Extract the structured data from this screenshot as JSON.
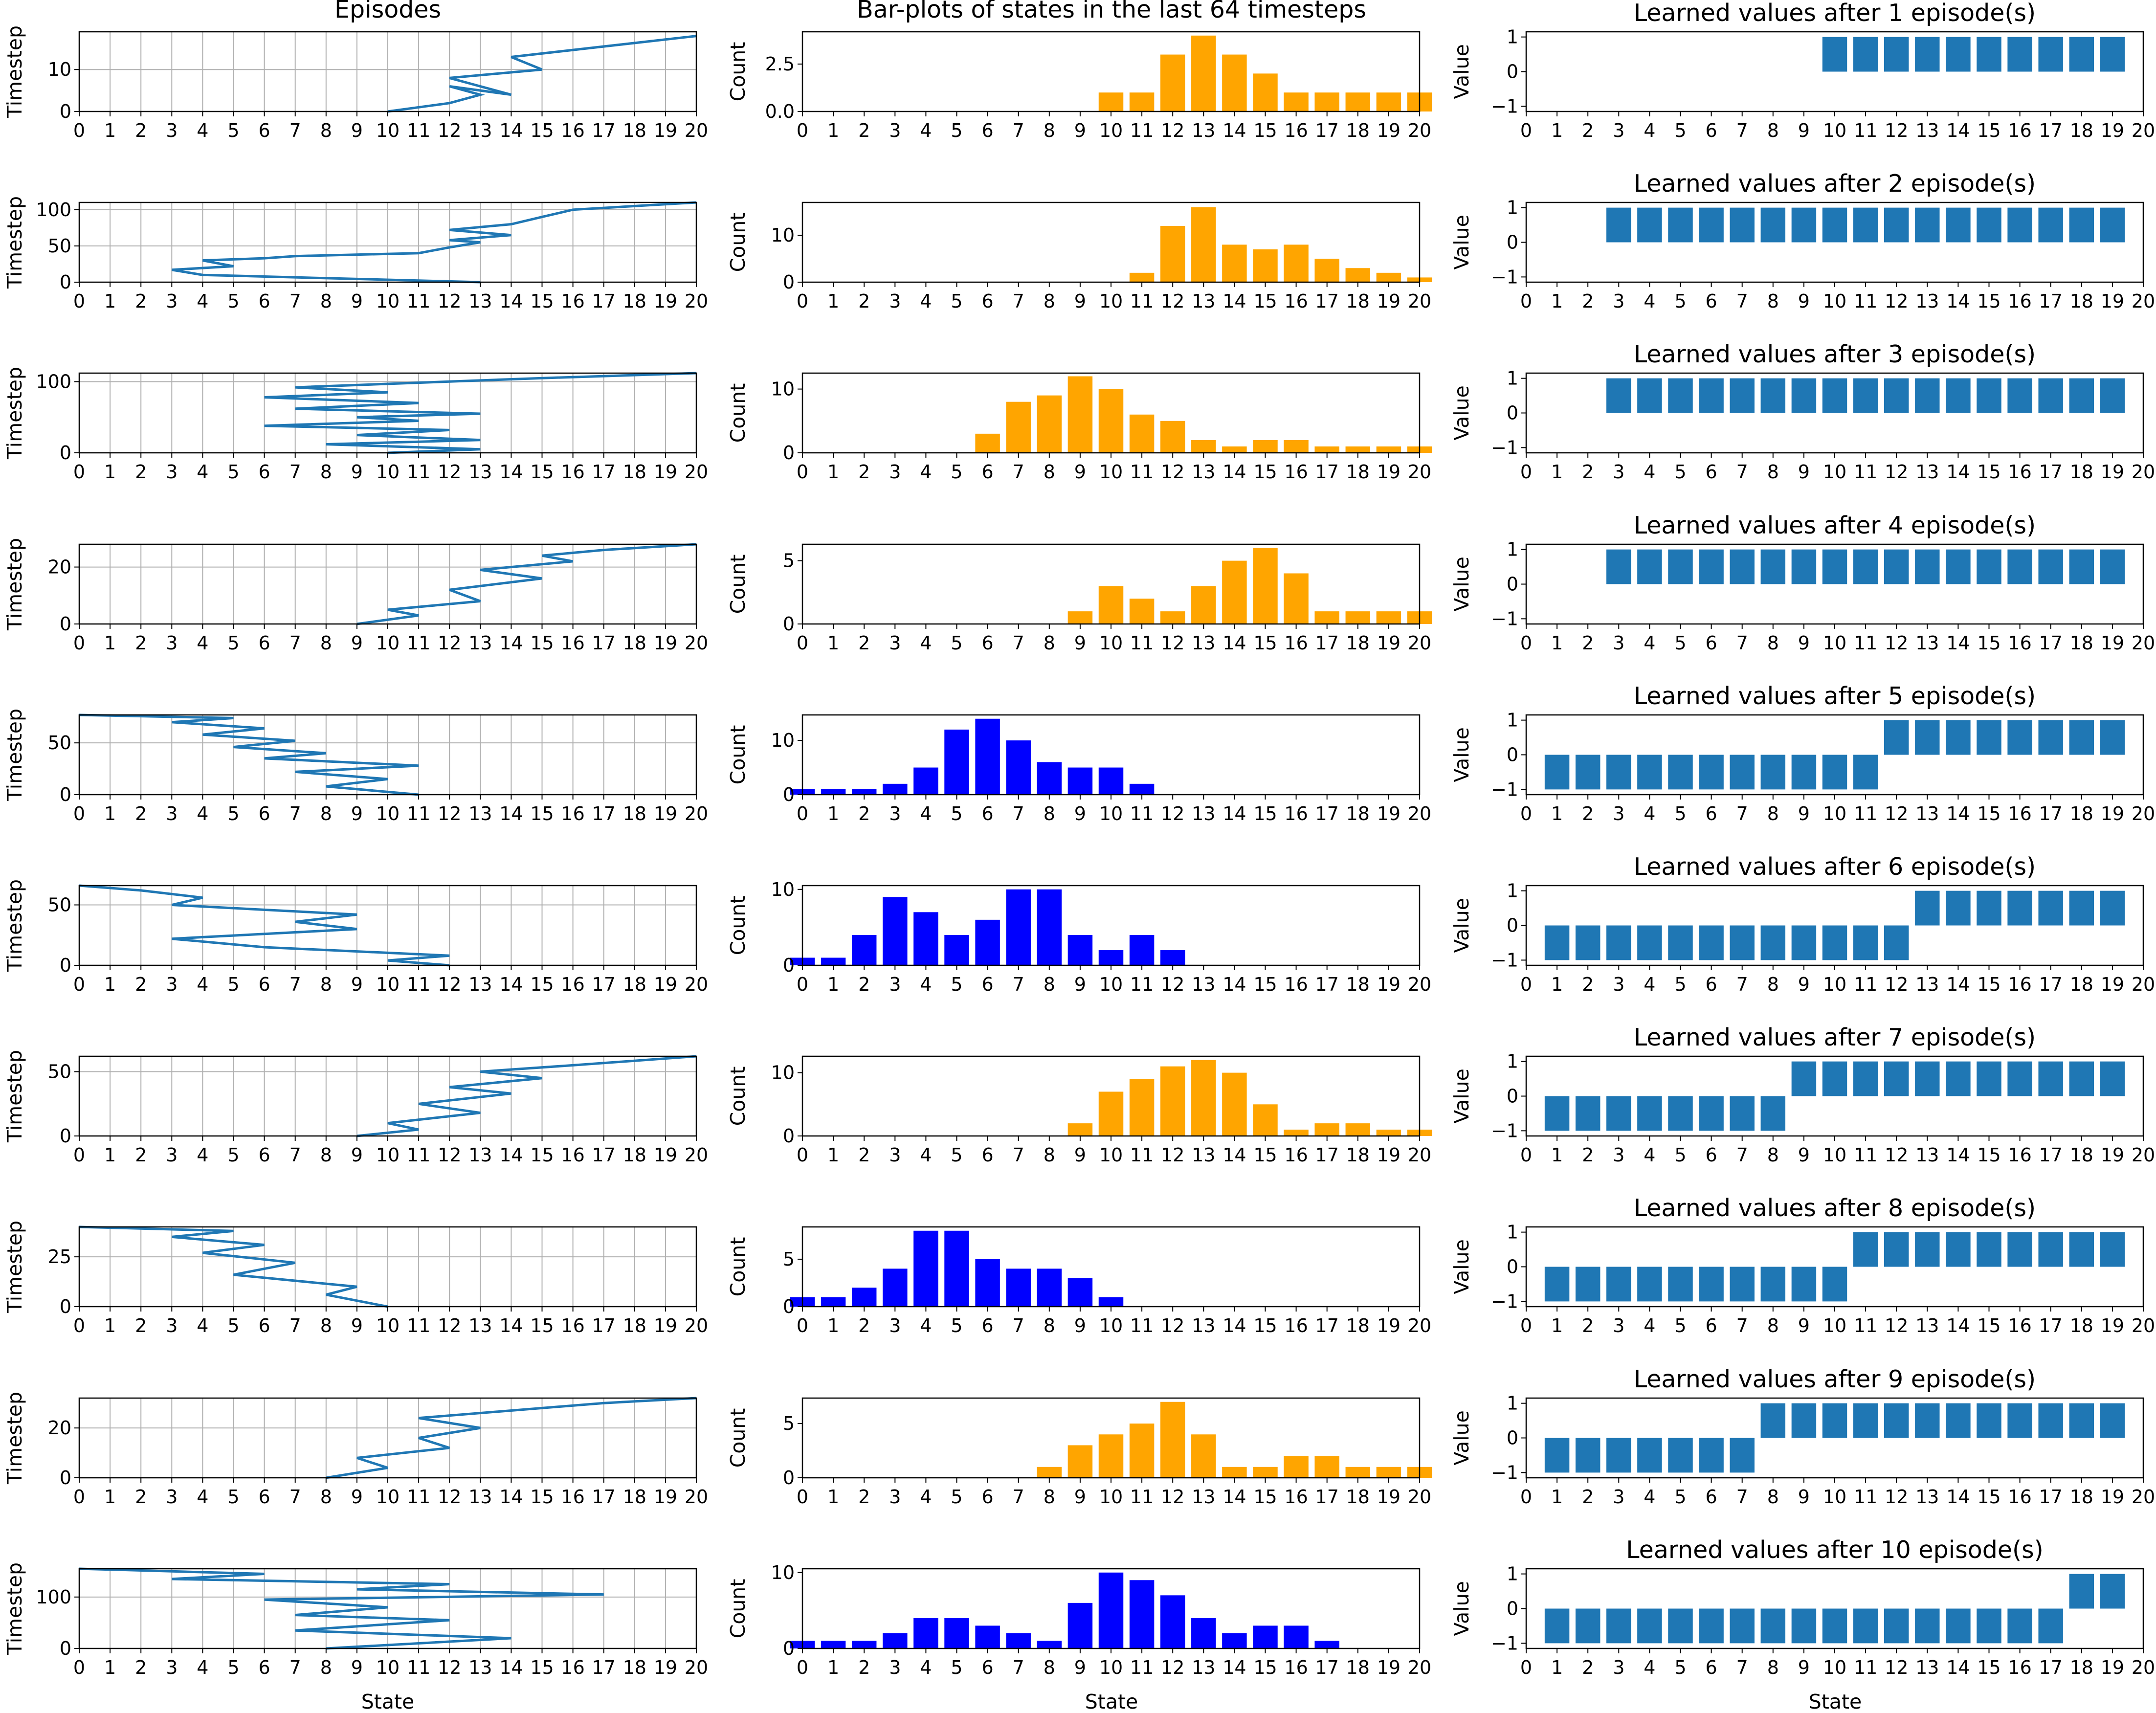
{
  "figure": {
    "col_titles": [
      "Episodes",
      "Bar-plots of states in the last 64 timesteps",
      ""
    ],
    "xlabels": [
      "State",
      "State",
      "State"
    ]
  },
  "colors": {
    "line": "#1f77b4",
    "value_bar": "#1f77b4",
    "orange": "#ffa500",
    "blue": "#0000ff",
    "grid": "#b0b0b0"
  },
  "chart_data": [
    {
      "type": "line",
      "title": "Episodes",
      "xlabel": "State",
      "ylabel": "Timestep",
      "xlim": [
        0,
        20
      ],
      "grid": true,
      "series": [
        {
          "ylim": [
            0,
            19
          ],
          "yticks": [
            0,
            10
          ],
          "x": [
            10,
            12,
            13,
            12,
            14,
            12,
            13,
            12,
            15,
            14,
            20
          ],
          "y": [
            0,
            2,
            4,
            6,
            4,
            8,
            6,
            8,
            10,
            13,
            18
          ]
        },
        {
          "ylim": [
            0,
            110
          ],
          "yticks": [
            0,
            50,
            100
          ],
          "x": [
            13,
            4,
            3,
            5,
            4,
            6,
            7,
            11,
            12,
            13,
            12,
            14,
            12,
            14,
            15,
            16,
            20
          ],
          "y": [
            0,
            10,
            17,
            22,
            30,
            33,
            36,
            40,
            48,
            55,
            58,
            65,
            72,
            80,
            90,
            100,
            110
          ]
        },
        {
          "ylim": [
            0,
            112
          ],
          "yticks": [
            0,
            100
          ],
          "x": [
            10,
            13,
            8,
            13,
            9,
            12,
            6,
            11,
            9,
            13,
            7,
            11,
            6,
            10,
            7,
            15,
            20
          ],
          "y": [
            0,
            5,
            12,
            18,
            25,
            32,
            38,
            45,
            50,
            55,
            62,
            70,
            78,
            85,
            92,
            105,
            112
          ]
        },
        {
          "ylim": [
            0,
            28
          ],
          "yticks": [
            0,
            20
          ],
          "x": [
            9,
            11,
            10,
            13,
            12,
            15,
            13,
            16,
            15,
            17,
            20
          ],
          "y": [
            0,
            3,
            5,
            8,
            12,
            16,
            19,
            22,
            24,
            26,
            28
          ]
        },
        {
          "ylim": [
            0,
            77
          ],
          "yticks": [
            0,
            50
          ],
          "x": [
            11,
            8,
            10,
            7,
            11,
            6,
            8,
            5,
            7,
            4,
            6,
            3,
            5,
            0
          ],
          "y": [
            0,
            8,
            15,
            22,
            28,
            35,
            40,
            46,
            52,
            58,
            64,
            70,
            74,
            77
          ]
        },
        {
          "ylim": [
            0,
            66
          ],
          "yticks": [
            0,
            50
          ],
          "x": [
            12,
            10,
            12,
            6,
            3,
            9,
            7,
            9,
            3,
            4,
            2,
            0
          ],
          "y": [
            0,
            4,
            8,
            15,
            22,
            30,
            36,
            42,
            50,
            56,
            62,
            66
          ]
        },
        {
          "ylim": [
            0,
            62
          ],
          "yticks": [
            0,
            50
          ],
          "x": [
            9,
            11,
            10,
            13,
            11,
            14,
            12,
            15,
            13,
            16,
            20
          ],
          "y": [
            0,
            5,
            10,
            18,
            25,
            33,
            38,
            45,
            50,
            55,
            62
          ]
        },
        {
          "ylim": [
            0,
            40
          ],
          "yticks": [
            0,
            25
          ],
          "x": [
            10,
            8,
            9,
            5,
            7,
            4,
            6,
            3,
            5,
            0
          ],
          "y": [
            0,
            6,
            10,
            16,
            22,
            27,
            31,
            35,
            38,
            40
          ]
        },
        {
          "ylim": [
            0,
            32
          ],
          "yticks": [
            0,
            20
          ],
          "x": [
            8,
            10,
            9,
            12,
            11,
            13,
            11,
            14,
            17,
            20
          ],
          "y": [
            0,
            4,
            8,
            12,
            16,
            20,
            24,
            27,
            30,
            32
          ]
        },
        {
          "ylim": [
            0,
            155
          ],
          "yticks": [
            0,
            100
          ],
          "x": [
            8,
            14,
            7,
            12,
            7,
            10,
            6,
            17,
            9,
            12,
            3,
            6,
            0
          ],
          "y": [
            0,
            20,
            35,
            55,
            65,
            80,
            95,
            105,
            115,
            125,
            135,
            145,
            155
          ]
        }
      ]
    },
    {
      "type": "bar",
      "title": "Bar-plots of states in the last 64 timesteps",
      "xlabel": "State",
      "ylabel": "Count",
      "xlim": [
        0,
        20
      ],
      "categories": [
        0,
        1,
        2,
        3,
        4,
        5,
        6,
        7,
        8,
        9,
        10,
        11,
        12,
        13,
        14,
        15,
        16,
        17,
        18,
        19,
        20
      ],
      "series": [
        {
          "color": "orange",
          "ymax": 4.2,
          "yticks": [
            0.0,
            2.5
          ],
          "ytick_labels": [
            "0.0",
            "2.5"
          ],
          "values": [
            0,
            0,
            0,
            0,
            0,
            0,
            0,
            0,
            0,
            0,
            1,
            1,
            3,
            4,
            3,
            2,
            1,
            1,
            1,
            1,
            1
          ]
        },
        {
          "color": "orange",
          "ymax": 17,
          "yticks": [
            0,
            10
          ],
          "values": [
            0,
            0,
            0,
            0,
            0,
            0,
            0,
            0,
            0,
            0,
            0,
            2,
            12,
            16,
            8,
            7,
            8,
            5,
            3,
            2,
            1
          ]
        },
        {
          "color": "orange",
          "ymax": 12.5,
          "yticks": [
            0,
            10
          ],
          "values": [
            0,
            0,
            0,
            0,
            0,
            0,
            3,
            8,
            9,
            12,
            10,
            6,
            5,
            2,
            1,
            2,
            2,
            1,
            1,
            1,
            1
          ]
        },
        {
          "color": "orange",
          "ymax": 6.3,
          "yticks": [
            0,
            5
          ],
          "values": [
            0,
            0,
            0,
            0,
            0,
            0,
            0,
            0,
            0,
            1,
            3,
            2,
            1,
            3,
            5,
            6,
            4,
            1,
            1,
            1,
            1
          ]
        },
        {
          "color": "blue",
          "ymax": 14.7,
          "yticks": [
            0,
            10
          ],
          "values": [
            1,
            1,
            1,
            2,
            5,
            12,
            14,
            10,
            6,
            5,
            5,
            2,
            0,
            0,
            0,
            0,
            0,
            0,
            0,
            0,
            0
          ]
        },
        {
          "color": "blue",
          "ymax": 10.5,
          "yticks": [
            0,
            10
          ],
          "values": [
            1,
            1,
            4,
            9,
            7,
            4,
            6,
            10,
            10,
            4,
            2,
            4,
            2,
            0,
            0,
            0,
            0,
            0,
            0,
            0,
            0
          ]
        },
        {
          "color": "orange",
          "ymax": 12.6,
          "yticks": [
            0,
            10
          ],
          "values": [
            0,
            0,
            0,
            0,
            0,
            0,
            0,
            0,
            0,
            2,
            7,
            9,
            11,
            12,
            10,
            5,
            1,
            2,
            2,
            1,
            1
          ]
        },
        {
          "color": "blue",
          "ymax": 8.4,
          "yticks": [
            0,
            5
          ],
          "values": [
            1,
            1,
            2,
            4,
            8,
            8,
            5,
            4,
            4,
            3,
            1,
            0,
            0,
            0,
            0,
            0,
            0,
            0,
            0,
            0,
            0
          ]
        },
        {
          "color": "orange",
          "ymax": 7.35,
          "yticks": [
            0,
            5
          ],
          "values": [
            0,
            0,
            0,
            0,
            0,
            0,
            0,
            0,
            1,
            3,
            4,
            5,
            7,
            4,
            1,
            1,
            2,
            2,
            1,
            1,
            1
          ]
        },
        {
          "color": "blue",
          "ymax": 10.5,
          "yticks": [
            0,
            10
          ],
          "values": [
            1,
            1,
            1,
            2,
            4,
            4,
            3,
            2,
            1,
            6,
            10,
            9,
            7,
            4,
            2,
            3,
            3,
            1,
            0,
            0,
            0
          ]
        }
      ]
    },
    {
      "type": "bar",
      "xlabel": "State",
      "ylabel": "Value",
      "xlim": [
        0,
        20
      ],
      "ylim": [
        -1.15,
        1.15
      ],
      "yticks": [
        -1,
        0,
        1
      ],
      "ytick_labels": [
        "−1",
        "0",
        "1"
      ],
      "categories": [
        1,
        2,
        3,
        4,
        5,
        6,
        7,
        8,
        9,
        10,
        11,
        12,
        13,
        14,
        15,
        16,
        17,
        18,
        19
      ],
      "series": [
        {
          "title": "Learned values after 1 episode(s)",
          "values": [
            0,
            0,
            0,
            0,
            0,
            0,
            0,
            0,
            0,
            1,
            1,
            1,
            1,
            1,
            1,
            1,
            1,
            1,
            1
          ]
        },
        {
          "title": "Learned values after 2 episode(s)",
          "values": [
            0,
            0,
            1,
            1,
            1,
            1,
            1,
            1,
            1,
            1,
            1,
            1,
            1,
            1,
            1,
            1,
            1,
            1,
            1
          ]
        },
        {
          "title": "Learned values after 3 episode(s)",
          "values": [
            0,
            0,
            1,
            1,
            1,
            1,
            1,
            1,
            1,
            1,
            1,
            1,
            1,
            1,
            1,
            1,
            1,
            1,
            1
          ]
        },
        {
          "title": "Learned values after 4 episode(s)",
          "values": [
            0,
            0,
            1,
            1,
            1,
            1,
            1,
            1,
            1,
            1,
            1,
            1,
            1,
            1,
            1,
            1,
            1,
            1,
            1
          ]
        },
        {
          "title": "Learned values after 5 episode(s)",
          "values": [
            -1,
            -1,
            -1,
            -1,
            -1,
            -1,
            -1,
            -1,
            -1,
            -1,
            -1,
            1,
            1,
            1,
            1,
            1,
            1,
            1,
            1
          ]
        },
        {
          "title": "Learned values after 6 episode(s)",
          "values": [
            -1,
            -1,
            -1,
            -1,
            -1,
            -1,
            -1,
            -1,
            -1,
            -1,
            -1,
            -1,
            1,
            1,
            1,
            1,
            1,
            1,
            1
          ]
        },
        {
          "title": "Learned values after 7 episode(s)",
          "values": [
            -1,
            -1,
            -1,
            -1,
            -1,
            -1,
            -1,
            -1,
            1,
            1,
            1,
            1,
            1,
            1,
            1,
            1,
            1,
            1,
            1
          ]
        },
        {
          "title": "Learned values after 8 episode(s)",
          "values": [
            -1,
            -1,
            -1,
            -1,
            -1,
            -1,
            -1,
            -1,
            -1,
            -1,
            1,
            1,
            1,
            1,
            1,
            1,
            1,
            1,
            1
          ]
        },
        {
          "title": "Learned values after 9 episode(s)",
          "values": [
            -1,
            -1,
            -1,
            -1,
            -1,
            -1,
            -1,
            1,
            1,
            1,
            1,
            1,
            1,
            1,
            1,
            1,
            1,
            1,
            1
          ]
        },
        {
          "title": "Learned values after 10 episode(s)",
          "values": [
            -1,
            -1,
            -1,
            -1,
            -1,
            -1,
            -1,
            -1,
            -1,
            -1,
            -1,
            -1,
            -1,
            -1,
            -1,
            -1,
            -1,
            1,
            1
          ]
        }
      ]
    }
  ]
}
